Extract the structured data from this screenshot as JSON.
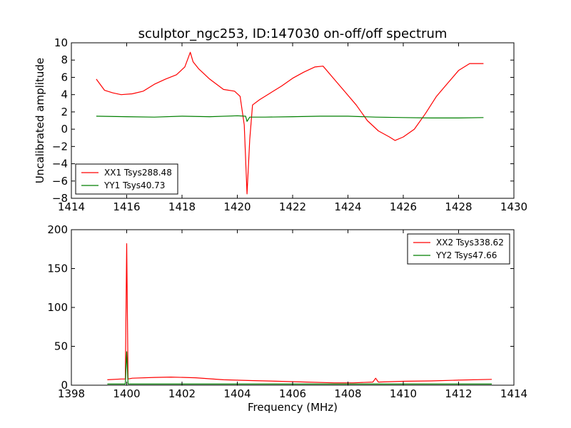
{
  "figure": {
    "title": "sculptor_ngc253, ID:147030 on-off/off spectrum",
    "xlabel": "Frequency (MHz)"
  },
  "chart_data": [
    {
      "type": "line",
      "title": "sculptor_ngc253, ID:147030 on-off/off spectrum",
      "xlabel": "",
      "ylabel": "Uncalibrated amplitude",
      "xlim": [
        1414,
        1430
      ],
      "ylim": [
        -8,
        10
      ],
      "xticks": [
        "1414",
        "1416",
        "1418",
        "1420",
        "1422",
        "1424",
        "1426",
        "1428",
        "1430"
      ],
      "yticks": [
        "−8",
        "−6",
        "−4",
        "−2",
        "0",
        "2",
        "4",
        "6",
        "8",
        "10"
      ],
      "legend_position": "lower-left",
      "series": [
        {
          "name": "XX1 Tsys288.48",
          "color": "#ff0000",
          "x": [
            1414.9,
            1415.2,
            1415.5,
            1415.8,
            1416.2,
            1416.6,
            1417.0,
            1417.4,
            1417.8,
            1418.1,
            1418.3,
            1418.4,
            1418.6,
            1419.0,
            1419.5,
            1419.9,
            1420.1,
            1420.25,
            1420.35,
            1420.45,
            1420.55,
            1420.8,
            1421.2,
            1421.6,
            1422.0,
            1422.4,
            1422.8,
            1423.1,
            1423.5,
            1423.9,
            1424.3,
            1424.7,
            1425.1,
            1425.5,
            1425.7,
            1426.0,
            1426.4,
            1426.8,
            1427.2,
            1427.6,
            1428.0,
            1428.4,
            1428.9
          ],
          "y": [
            5.8,
            4.5,
            4.2,
            4.0,
            4.1,
            4.4,
            5.2,
            5.8,
            6.3,
            7.2,
            8.9,
            7.8,
            7.0,
            5.8,
            4.6,
            4.4,
            3.8,
            0.5,
            -7.5,
            -1.2,
            2.8,
            3.4,
            4.2,
            5.0,
            5.9,
            6.6,
            7.2,
            7.3,
            5.8,
            4.3,
            2.8,
            1.0,
            -0.2,
            -0.9,
            -1.3,
            -0.9,
            0.0,
            1.8,
            3.8,
            5.3,
            6.8,
            7.6,
            7.6
          ]
        },
        {
          "name": "YY1 Tsys40.73",
          "color": "#007f00",
          "x": [
            1414.9,
            1416.0,
            1417.0,
            1418.0,
            1419.0,
            1420.0,
            1420.3,
            1420.35,
            1420.45,
            1421.0,
            1422.0,
            1423.0,
            1424.0,
            1425.0,
            1426.0,
            1427.0,
            1428.0,
            1428.9
          ],
          "y": [
            1.5,
            1.45,
            1.4,
            1.5,
            1.45,
            1.55,
            1.5,
            0.9,
            1.4,
            1.4,
            1.45,
            1.5,
            1.5,
            1.4,
            1.35,
            1.3,
            1.3,
            1.35
          ]
        }
      ]
    },
    {
      "type": "line",
      "title": "",
      "xlabel": "Frequency (MHz)",
      "ylabel": "",
      "xlim": [
        1398,
        1414
      ],
      "ylim": [
        0,
        200
      ],
      "xticks": [
        "1398",
        "1400",
        "1402",
        "1404",
        "1406",
        "1408",
        "1410",
        "1412",
        "1414"
      ],
      "yticks": [
        "0",
        "50",
        "100",
        "150",
        "200"
      ],
      "legend_position": "upper-right",
      "series": [
        {
          "name": "XX2 Tsys338.62",
          "color": "#ff0000",
          "x": [
            1399.3,
            1399.8,
            1399.95,
            1400.0,
            1400.05,
            1400.2,
            1401.0,
            1401.6,
            1402.5,
            1403.5,
            1404.5,
            1405.5,
            1406.5,
            1407.5,
            1408.2,
            1408.9,
            1409.0,
            1409.1,
            1410.0,
            1411.0,
            1412.0,
            1413.2
          ],
          "y": [
            7,
            8,
            8,
            182,
            8,
            9,
            10,
            10.5,
            9.5,
            7,
            6,
            5,
            4,
            3,
            3,
            4,
            9,
            4,
            5,
            5.5,
            6.5,
            7.5
          ]
        },
        {
          "name": "YY2 Tsys47.66",
          "color": "#007f00",
          "x": [
            1399.3,
            1399.95,
            1400.0,
            1400.05,
            1401.0,
            1403.0,
            1405.0,
            1407.0,
            1409.0,
            1411.0,
            1413.2
          ],
          "y": [
            1.5,
            1.5,
            43,
            1.5,
            1.5,
            1.5,
            1.5,
            1.5,
            1.5,
            1.5,
            1.5
          ]
        }
      ]
    }
  ]
}
